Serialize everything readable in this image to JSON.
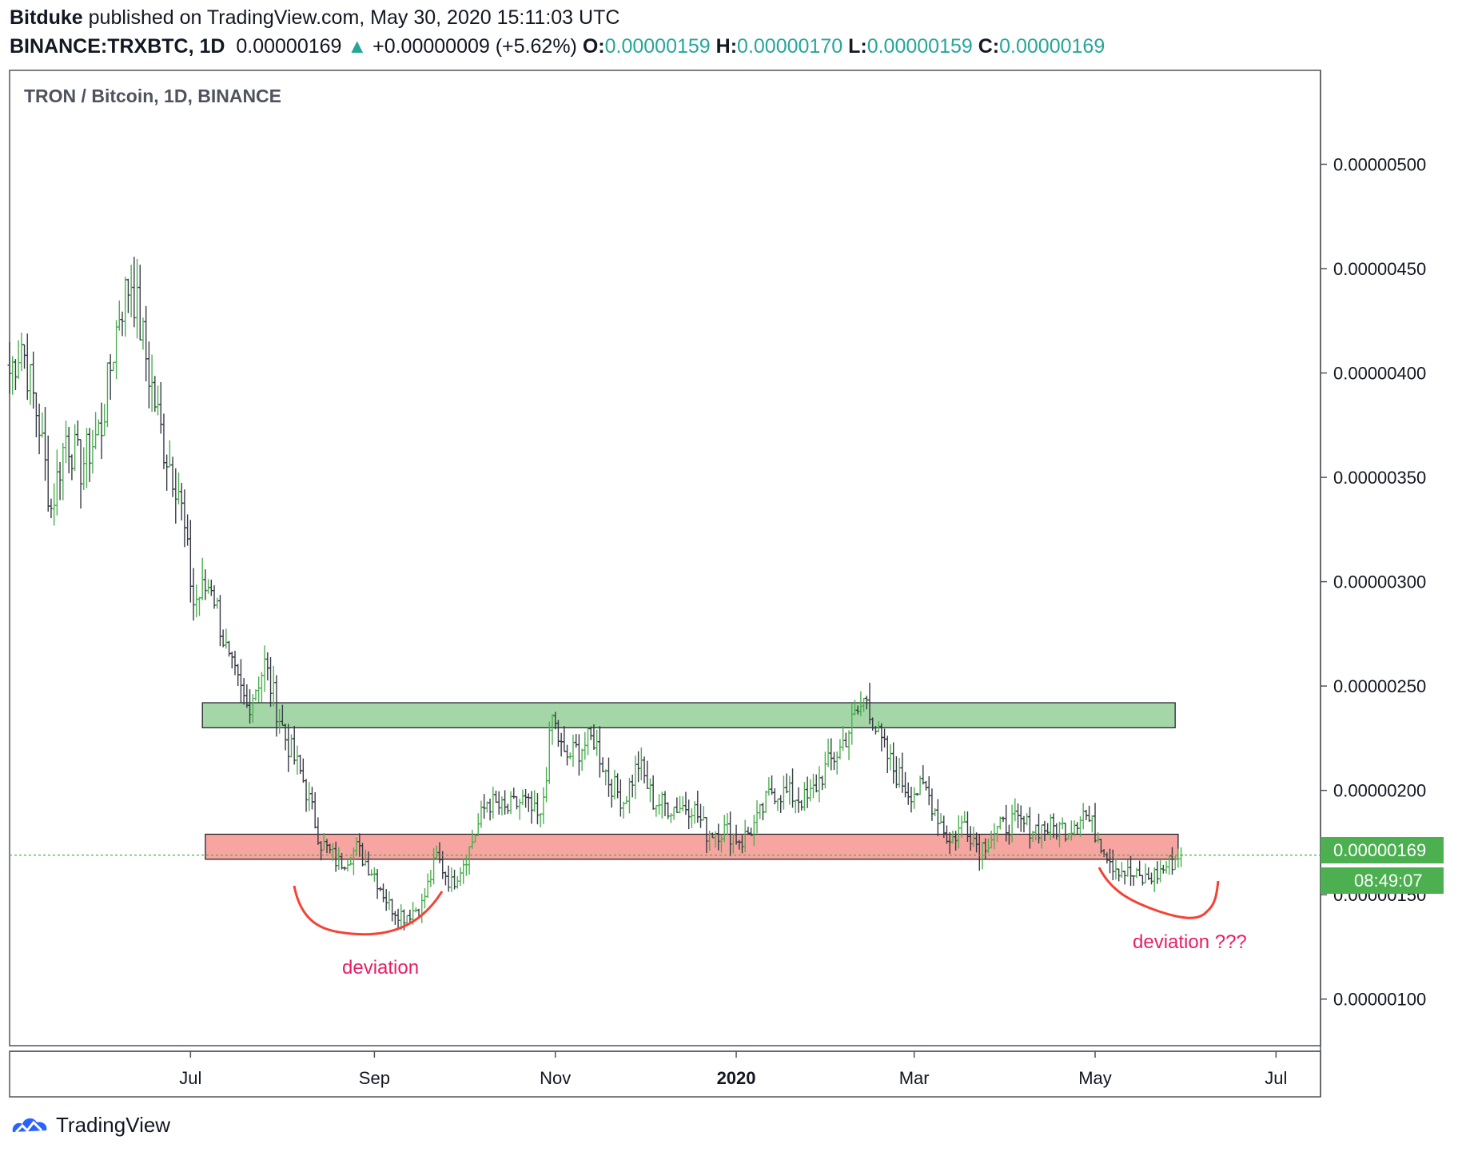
{
  "header": {
    "author": "Bitduke",
    "published_text": " published on TradingView.com, May 30, 2020 15:11:03 UTC",
    "symbol": "BINANCE:TRXBTC, 1D",
    "last_price": "0.00000169",
    "change_arrow": "▲",
    "change": "+0.00000009 (+5.62%)",
    "o_label": "O:",
    "o_value": "0.00000159",
    "h_label": "H:",
    "h_value": "0.00000170",
    "l_label": "L:",
    "l_value": "0.00000159",
    "c_label": "C:",
    "c_value": "0.00000169"
  },
  "footer": {
    "brand": "TradingView"
  },
  "chart_data": {
    "type": "candlestick",
    "title": "TRON / Bitcoin, 1D, BINANCE",
    "y_unit": "BTC",
    "ylim": [
      7.5e-07,
      5.45e-06
    ],
    "yticks": [
      "0.00000100",
      "0.00000150",
      "0.00000200",
      "0.00000250",
      "0.00000300",
      "0.00000350",
      "0.00000400",
      "0.00000450",
      "0.00000500"
    ],
    "x_range": [
      "2019-05-01",
      "2020-07-16"
    ],
    "xticks": [
      {
        "date": "2019-07-01",
        "label": "Jul"
      },
      {
        "date": "2019-09-01",
        "label": "Sep"
      },
      {
        "date": "2019-11-01",
        "label": "Nov"
      },
      {
        "date": "2020-01-01",
        "label": "2020"
      },
      {
        "date": "2020-03-01",
        "label": "Mar"
      },
      {
        "date": "2020-05-01",
        "label": "May"
      },
      {
        "date": "2020-07-01",
        "label": "Jul"
      }
    ],
    "price_path": [
      [
        "2019-05-01",
        4e-06
      ],
      [
        "2019-05-05",
        4.15e-06
      ],
      [
        "2019-05-11",
        3.75e-06
      ],
      [
        "2019-05-15",
        3.35e-06
      ],
      [
        "2019-05-20",
        3.7e-06
      ],
      [
        "2019-05-25",
        3.55e-06
      ],
      [
        "2019-06-01",
        3.75e-06
      ],
      [
        "2019-06-07",
        4.3e-06
      ],
      [
        "2019-06-11",
        4.45e-06
      ],
      [
        "2019-06-17",
        4e-06
      ],
      [
        "2019-06-22",
        3.65e-06
      ],
      [
        "2019-06-27",
        3.45e-06
      ],
      [
        "2019-07-02",
        2.9e-06
      ],
      [
        "2019-07-08",
        3e-06
      ],
      [
        "2019-07-14",
        2.6e-06
      ],
      [
        "2019-07-20",
        2.4e-06
      ],
      [
        "2019-07-26",
        2.6e-06
      ],
      [
        "2019-08-02",
        2.25e-06
      ],
      [
        "2019-08-08",
        2.05e-06
      ],
      [
        "2019-08-14",
        1.75e-06
      ],
      [
        "2019-08-20",
        1.65e-06
      ],
      [
        "2019-08-26",
        1.72e-06
      ],
      [
        "2019-09-01",
        1.6e-06
      ],
      [
        "2019-09-06",
        1.45e-06
      ],
      [
        "2019-09-11",
        1.4e-06
      ],
      [
        "2019-09-17",
        1.45e-06
      ],
      [
        "2019-09-22",
        1.68e-06
      ],
      [
        "2019-09-27",
        1.55e-06
      ],
      [
        "2019-10-03",
        1.72e-06
      ],
      [
        "2019-10-09",
        1.95e-06
      ],
      [
        "2019-10-15",
        1.9e-06
      ],
      [
        "2019-10-21",
        1.95e-06
      ],
      [
        "2019-10-27",
        1.85e-06
      ],
      [
        "2019-10-31",
        2.35e-06
      ],
      [
        "2019-11-04",
        2.15e-06
      ],
      [
        "2019-11-09",
        2.2e-06
      ],
      [
        "2019-11-14",
        2.25e-06
      ],
      [
        "2019-11-19",
        2.05e-06
      ],
      [
        "2019-11-24",
        1.95e-06
      ],
      [
        "2019-11-29",
        2.13e-06
      ],
      [
        "2019-12-04",
        1.95e-06
      ],
      [
        "2019-12-10",
        1.92e-06
      ],
      [
        "2019-12-17",
        1.93e-06
      ],
      [
        "2019-12-22",
        1.8e-06
      ],
      [
        "2019-12-28",
        1.81e-06
      ],
      [
        "2020-01-03",
        1.76e-06
      ],
      [
        "2020-01-08",
        1.85e-06
      ],
      [
        "2020-01-13",
        2e-06
      ],
      [
        "2020-01-19",
        1.98e-06
      ],
      [
        "2020-01-25",
        1.95e-06
      ],
      [
        "2020-01-31",
        2.1e-06
      ],
      [
        "2020-02-05",
        2.2e-06
      ],
      [
        "2020-02-10",
        2.35e-06
      ],
      [
        "2020-02-14",
        2.45e-06
      ],
      [
        "2020-02-18",
        2.25e-06
      ],
      [
        "2020-02-23",
        2.1e-06
      ],
      [
        "2020-02-28",
        2e-06
      ],
      [
        "2020-03-05",
        2e-06
      ],
      [
        "2020-03-10",
        1.85e-06
      ],
      [
        "2020-03-13",
        1.75e-06
      ],
      [
        "2020-03-18",
        1.85e-06
      ],
      [
        "2020-03-23",
        1.72e-06
      ],
      [
        "2020-03-28",
        1.8e-06
      ],
      [
        "2020-04-03",
        1.85e-06
      ],
      [
        "2020-04-10",
        1.82e-06
      ],
      [
        "2020-04-16",
        1.82e-06
      ],
      [
        "2020-04-22",
        1.82e-06
      ],
      [
        "2020-04-27",
        1.9e-06
      ],
      [
        "2020-05-02",
        1.78e-06
      ],
      [
        "2020-05-07",
        1.65e-06
      ],
      [
        "2020-05-12",
        1.6e-06
      ],
      [
        "2020-05-17",
        1.57e-06
      ],
      [
        "2020-05-22",
        1.6e-06
      ],
      [
        "2020-05-26",
        1.65e-06
      ],
      [
        "2020-05-30",
        1.69e-06
      ]
    ],
    "zones": [
      {
        "label": "",
        "color": "#a5d6a7",
        "from": "2019-07-05",
        "to": "2020-05-28",
        "low": 2.3e-06,
        "high": 2.42e-06
      },
      {
        "label": "",
        "color": "#f7a5a0",
        "from": "2019-07-06",
        "to": "2020-05-29",
        "low": 1.67e-06,
        "high": 1.79e-06
      }
    ],
    "current_price": {
      "value": 1.69e-06,
      "label": "0.00000169",
      "countdown": "08:49:07",
      "color": "#4caf50"
    },
    "annotations": [
      {
        "text": "deviation",
        "color": "#e91e63"
      },
      {
        "text": "deviation ???",
        "color": "#e91e63"
      }
    ],
    "colors": {
      "up": "#4caf50",
      "down": "#363a45"
    }
  }
}
